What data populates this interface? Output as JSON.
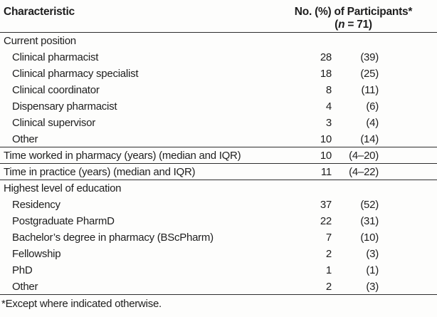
{
  "table": {
    "header": {
      "characteristic": "Characteristic",
      "participants_line1": "No. (%) of Participants*",
      "n_prefix": "(",
      "n_italic": "n",
      "n_suffix": " = 71)"
    },
    "rows": [
      {
        "label": "Current position",
        "type": "section",
        "no": "",
        "pct": ""
      },
      {
        "label": "Clinical pharmacist",
        "type": "item",
        "no": "28",
        "pct": "(39)"
      },
      {
        "label": "Clinical pharmacy specialist",
        "type": "item",
        "no": "18",
        "pct": "(25)"
      },
      {
        "label": "Clinical coordinator",
        "type": "item",
        "no": "8",
        "pct": "(11)"
      },
      {
        "label": "Dispensary pharmacist",
        "type": "item",
        "no": "4",
        "pct": "(6)"
      },
      {
        "label": "Clinical supervisor",
        "type": "item",
        "no": "3",
        "pct": "(4)"
      },
      {
        "label": "Other",
        "type": "item",
        "no": "10",
        "pct": "(14)"
      },
      {
        "label": "Time worked in pharmacy (years) (median and IQR)",
        "type": "flush",
        "no": "10",
        "pct": "(4–20)"
      },
      {
        "label": "Time in practice (years) (median and IQR)",
        "type": "flush",
        "no": "11",
        "pct": "(4–22)"
      },
      {
        "label": "Highest level of education",
        "type": "section",
        "no": "",
        "pct": ""
      },
      {
        "label": "Residency",
        "type": "item",
        "no": "37",
        "pct": "(52)"
      },
      {
        "label": "Postgraduate PharmD",
        "type": "item",
        "no": "22",
        "pct": "(31)"
      },
      {
        "label": "Bachelor’s degree in pharmacy (BScPharm)",
        "type": "item",
        "no": "7",
        "pct": "(10)"
      },
      {
        "label": "Fellowship",
        "type": "item",
        "no": "2",
        "pct": "(3)"
      },
      {
        "label": "PhD",
        "type": "item",
        "no": "1",
        "pct": "(1)"
      },
      {
        "label": "Other",
        "type": "item",
        "no": "2",
        "pct": "(3)"
      }
    ],
    "footnote": "*Except where indicated otherwise."
  },
  "colors": {
    "text": "#1e1e1e",
    "rule": "#2e2e2e",
    "background": "#fdfdfc"
  }
}
